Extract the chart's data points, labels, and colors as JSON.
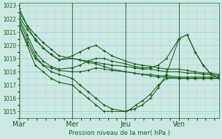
{
  "xlabel": "Pression niveau de la mer( hPa )",
  "background_color": "#cce8e4",
  "grid_color": "#aad0cc",
  "line_color": "#1a5c1a",
  "ylim": [
    1014.5,
    1023.2
  ],
  "yticks": [
    1015,
    1016,
    1017,
    1018,
    1019,
    1020,
    1021,
    1022,
    1023
  ],
  "xtick_labels": [
    "Mar",
    "Mer",
    "Jeu",
    "Ven"
  ],
  "xtick_positions": [
    0,
    0.333,
    0.667,
    1.0
  ],
  "xlim": [
    0,
    1.25
  ],
  "lines": [
    {
      "x": [
        0.0,
        0.05,
        0.1,
        0.15,
        0.2,
        0.25,
        0.333,
        0.38,
        0.43,
        0.48,
        0.53,
        0.58,
        0.667,
        0.72,
        0.77,
        0.82,
        0.87,
        0.92,
        1.0,
        1.05,
        1.1,
        1.15,
        1.2,
        1.25
      ],
      "y": [
        1022.5,
        1021.5,
        1020.8,
        1020.2,
        1019.7,
        1019.2,
        1019.0,
        1018.9,
        1018.8,
        1018.7,
        1018.6,
        1018.5,
        1018.4,
        1018.3,
        1018.2,
        1018.2,
        1018.1,
        1018.0,
        1018.0,
        1017.9,
        1017.9,
        1017.8,
        1017.8,
        1017.7
      ]
    },
    {
      "x": [
        0.0,
        0.05,
        0.1,
        0.15,
        0.2,
        0.25,
        0.333,
        0.38,
        0.43,
        0.48,
        0.53,
        0.58,
        0.667,
        0.72,
        0.77,
        0.82,
        0.87,
        0.92,
        1.0,
        1.05,
        1.1,
        1.15,
        1.2,
        1.25
      ],
      "y": [
        1022.2,
        1021.2,
        1020.5,
        1019.8,
        1019.3,
        1018.9,
        1019.2,
        1019.5,
        1019.8,
        1020.0,
        1019.6,
        1019.2,
        1018.8,
        1018.6,
        1018.5,
        1018.4,
        1018.3,
        1018.2,
        1018.2,
        1018.1,
        1018.0,
        1017.9,
        1017.9,
        1017.8
      ]
    },
    {
      "x": [
        0.0,
        0.05,
        0.1,
        0.15,
        0.2,
        0.25,
        0.333,
        0.38,
        0.43,
        0.48,
        0.53,
        0.58,
        0.667,
        0.72,
        0.77,
        0.82,
        0.87,
        0.92,
        1.0,
        1.05,
        1.1,
        1.15,
        1.2,
        1.25
      ],
      "y": [
        1021.5,
        1020.2,
        1019.0,
        1018.5,
        1018.3,
        1018.1,
        1018.0,
        1018.0,
        1018.1,
        1018.3,
        1018.2,
        1018.1,
        1018.0,
        1017.9,
        1017.8,
        1017.7,
        1017.6,
        1017.6,
        1017.5,
        1017.5,
        1017.5,
        1017.5,
        1017.5,
        1017.5
      ]
    },
    {
      "x": [
        0.0,
        0.05,
        0.1,
        0.15,
        0.2,
        0.25,
        0.333,
        0.38,
        0.43,
        0.48,
        0.53,
        0.58,
        0.667,
        0.72,
        0.77,
        0.82,
        0.87,
        0.92,
        1.0,
        1.05,
        1.1,
        1.15,
        1.2,
        1.25
      ],
      "y": [
        1022.8,
        1021.5,
        1020.4,
        1019.8,
        1019.3,
        1018.9,
        1019.0,
        1018.9,
        1018.7,
        1018.6,
        1018.4,
        1018.2,
        1018.0,
        1017.9,
        1017.8,
        1017.8,
        1017.7,
        1017.7,
        1017.6,
        1017.6,
        1017.6,
        1017.6,
        1017.6,
        1017.6
      ]
    },
    {
      "x": [
        0.0,
        0.05,
        0.1,
        0.15,
        0.2,
        0.25,
        0.333,
        0.38,
        0.43,
        0.48,
        0.53,
        0.58,
        0.667,
        0.72,
        0.77,
        0.82,
        0.87,
        0.92,
        1.0,
        1.05,
        1.1,
        1.15,
        1.2,
        1.25
      ],
      "y": [
        1022.0,
        1020.8,
        1019.5,
        1018.8,
        1018.4,
        1018.2,
        1018.3,
        1018.5,
        1018.8,
        1019.0,
        1019.0,
        1018.8,
        1018.6,
        1018.4,
        1018.3,
        1018.3,
        1018.5,
        1019.0,
        1020.5,
        1020.8,
        1019.5,
        1018.5,
        1017.8,
        1017.5
      ]
    },
    {
      "x": [
        0.0,
        0.05,
        0.1,
        0.15,
        0.2,
        0.25,
        0.333,
        0.38,
        0.43,
        0.48,
        0.53,
        0.58,
        0.667,
        0.72,
        0.77,
        0.82,
        0.87,
        0.92,
        1.0,
        1.05,
        1.1,
        1.15,
        1.2,
        1.25
      ],
      "y": [
        1021.8,
        1020.5,
        1019.2,
        1018.5,
        1018.0,
        1017.8,
        1017.5,
        1017.0,
        1016.5,
        1016.0,
        1015.5,
        1015.2,
        1015.0,
        1015.2,
        1015.5,
        1016.0,
        1016.8,
        1017.8,
        1020.5,
        1020.8,
        1019.5,
        1018.5,
        1017.8,
        1017.5
      ]
    },
    {
      "x": [
        0.0,
        0.05,
        0.1,
        0.15,
        0.2,
        0.25,
        0.333,
        0.38,
        0.43,
        0.48,
        0.53,
        0.58,
        0.667,
        0.7,
        0.73,
        0.77,
        0.82,
        0.87,
        0.92,
        1.0,
        1.05,
        1.1,
        1.15,
        1.2,
        1.25
      ],
      "y": [
        1021.5,
        1020.0,
        1018.5,
        1018.0,
        1017.5,
        1017.2,
        1017.0,
        1016.5,
        1016.0,
        1015.5,
        1015.0,
        1015.0,
        1015.0,
        1015.2,
        1015.5,
        1015.8,
        1016.3,
        1017.0,
        1017.5,
        1017.5,
        1017.5,
        1017.5,
        1017.5,
        1017.5,
        1017.5
      ]
    }
  ]
}
